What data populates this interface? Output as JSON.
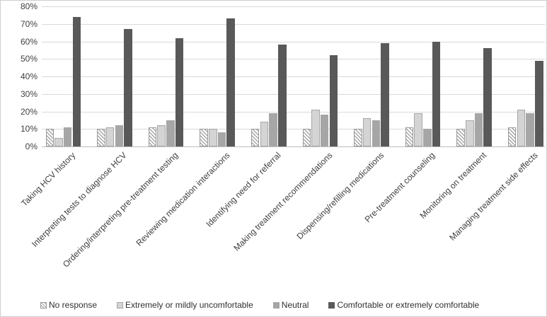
{
  "chart_data": {
    "type": "bar",
    "title": "",
    "xlabel": "",
    "ylabel": "",
    "categories": [
      "Taking HCV history",
      "Interpreting tests to diagnose HCV",
      "Ordering/interpreting pre-treatment testing",
      "Reviewing medication interactions",
      "Identifying need for referral",
      "Making treatment recommendations",
      "Dispensing/refilling medications",
      "Pre-treatment counseling",
      "Monitoring on treatment",
      "Managing treatment side effects"
    ],
    "series": [
      {
        "name": "No response",
        "style": "hatched",
        "values": [
          10,
          10,
          11,
          10,
          10,
          10,
          10,
          11,
          10,
          11
        ]
      },
      {
        "name": "Extremely or mildly uncomfortable",
        "style": "light",
        "values": [
          5,
          11,
          12,
          10,
          14,
          21,
          16,
          19,
          15,
          21
        ]
      },
      {
        "name": "Neutral",
        "style": "medium",
        "values": [
          11,
          12,
          15,
          8,
          19,
          18,
          15,
          10,
          19,
          19
        ]
      },
      {
        "name": "Comfortable or extremely comfortable",
        "style": "dark",
        "values": [
          74,
          67,
          62,
          73,
          58,
          52,
          59,
          60,
          56,
          49
        ]
      }
    ],
    "ylim": [
      0,
      80
    ],
    "y_tick_step": 10,
    "y_tick_labels": [
      "0%",
      "10%",
      "20%",
      "30%",
      "40%",
      "50%",
      "60%",
      "70%",
      "80%"
    ],
    "grid": true,
    "legend_position": "bottom"
  },
  "colors": {
    "dark": "#595959",
    "medium": "#a6a6a6",
    "light": "#d4d4d4",
    "hatch_stripe": "#a6a6a6",
    "hatch_background": "#ffffff",
    "bar_border": "#999999",
    "gridline": "#d9d9d9",
    "axis_line": "#bfbfbf",
    "text": "#3f3f3f"
  }
}
